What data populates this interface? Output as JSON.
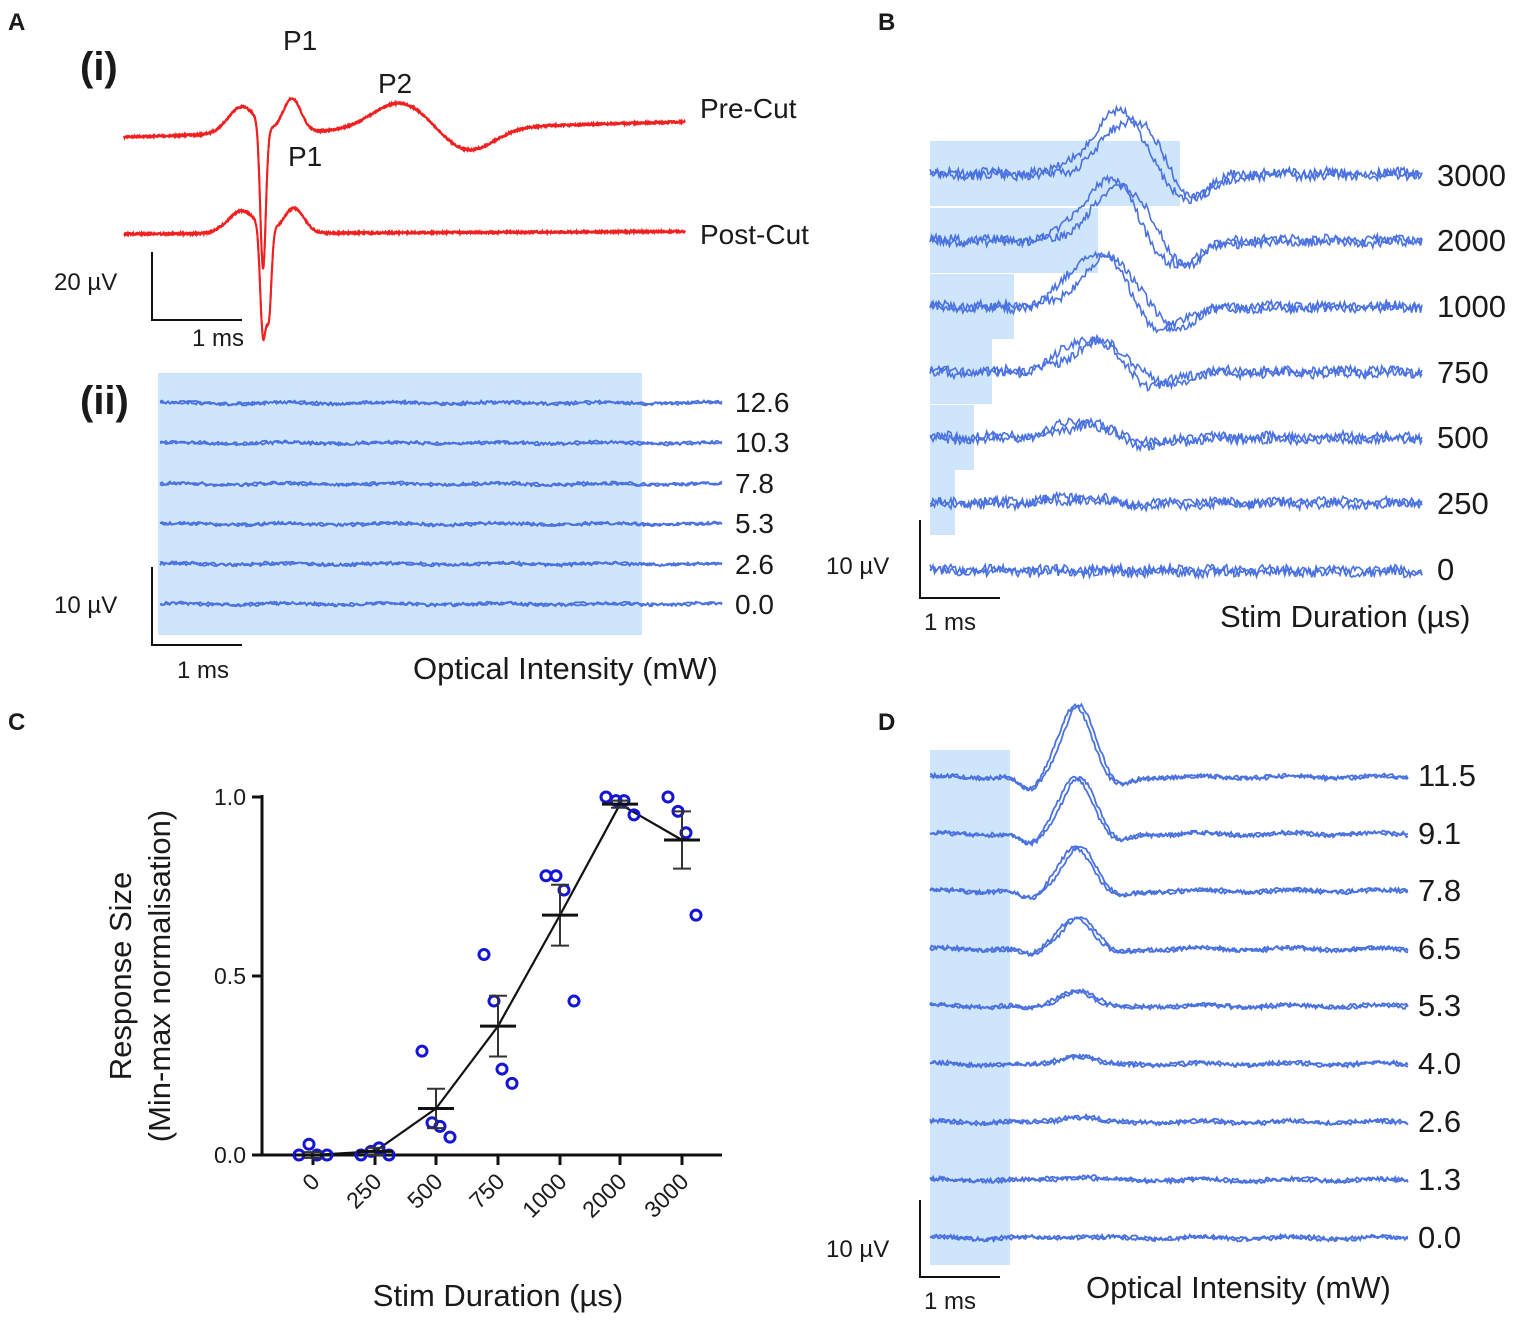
{
  "colors": {
    "red": "#f02020",
    "blue": "#4a72e0",
    "shade": "#cfe5fb",
    "dot": "#1515d6",
    "axis": "#111111"
  },
  "panelA": {
    "label": "A",
    "sub_i": "(i)",
    "sub_ii": "(ii)",
    "peak_p1": "P1",
    "peak_p2": "P2",
    "peak_p1_post": "P1",
    "trace_labels": [
      "Pre-Cut",
      "Post-Cut"
    ],
    "scale_i": {
      "y": "20 µV",
      "x": "1 ms"
    },
    "intensities": [
      "12.6",
      "10.3",
      "7.8",
      "5.3",
      "2.6",
      "0.0"
    ],
    "scale_ii": {
      "y": "10 µV",
      "x": "1 ms"
    },
    "axis_title_ii": "Optical Intensity (mW)"
  },
  "panelB": {
    "label": "B",
    "durations": [
      "3000",
      "2000",
      "1000",
      "750",
      "500",
      "250",
      "0"
    ],
    "duration_us": [
      3000,
      2000,
      1000,
      750,
      500,
      250,
      0
    ],
    "scale": {
      "y": "10 µV",
      "x": "1 ms"
    },
    "axis_title": "Stim Duration (µs)"
  },
  "panelD": {
    "label": "D",
    "intensities": [
      "11.5",
      "9.1",
      "7.8",
      "6.5",
      "5.3",
      "4.0",
      "2.6",
      "1.3",
      "0.0"
    ],
    "amplitudes": [
      1.0,
      0.8,
      0.62,
      0.45,
      0.22,
      0.12,
      0.08,
      0.05,
      0.02
    ],
    "scale": {
      "y": "10 µV",
      "x": "1 ms"
    },
    "axis_title": "Optical Intensity (mW)"
  },
  "chart_data": {
    "type": "scatter",
    "panel_label": "C",
    "title": "",
    "xlabel": "Stim Duration (µs)",
    "ylabel_line1": "Response Size",
    "ylabel_line2": "(Min-max normalisation)",
    "categories": [
      "0",
      "250",
      "500",
      "750",
      "1000",
      "2000",
      "3000"
    ],
    "ylim": [
      0,
      1
    ],
    "yticks": [
      0.0,
      0.5,
      1.0
    ],
    "ytick_labels": [
      "0.0",
      "0.5",
      "1.0"
    ],
    "mean": [
      0.0,
      0.01,
      0.13,
      0.36,
      0.67,
      0.98,
      0.88
    ],
    "sem": [
      0.008,
      0.01,
      0.055,
      0.085,
      0.085,
      0.01,
      0.08
    ],
    "points": [
      [
        0.0,
        0.03,
        0.0,
        0.0
      ],
      [
        0.0,
        0.01,
        0.02,
        0.0
      ],
      [
        0.29,
        0.09,
        0.08,
        0.05
      ],
      [
        0.56,
        0.43,
        0.24,
        0.2
      ],
      [
        0.78,
        0.78,
        0.74,
        0.43
      ],
      [
        1.0,
        0.99,
        0.99,
        0.95
      ],
      [
        1.0,
        0.96,
        0.9,
        0.67
      ]
    ]
  }
}
